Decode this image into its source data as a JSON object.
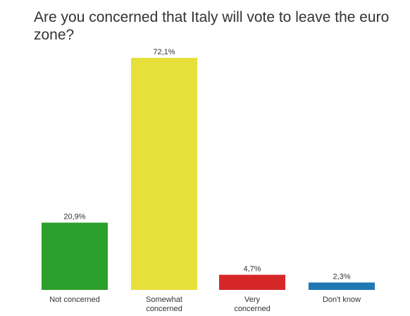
{
  "chart_data": {
    "type": "bar",
    "title": "Are you concerned that Italy will vote to leave the euro zone?",
    "categories": [
      "Not concerned",
      "Somewhat concerned",
      "Very concerned",
      "Don't know"
    ],
    "category_lines": [
      [
        "Not concerned"
      ],
      [
        "Somewhat",
        "concerned"
      ],
      [
        "Very",
        "concerned"
      ],
      [
        "Don't know"
      ]
    ],
    "values": [
      20.9,
      72.1,
      4.7,
      2.3
    ],
    "value_labels": [
      "20,9%",
      "72,1%",
      "4,7%",
      "2,3%"
    ],
    "colors": [
      "#2ca02c",
      "#e8e03a",
      "#d62728",
      "#1f77b4"
    ],
    "ylim": [
      0,
      72.1
    ],
    "grid": false,
    "legend": "none"
  }
}
